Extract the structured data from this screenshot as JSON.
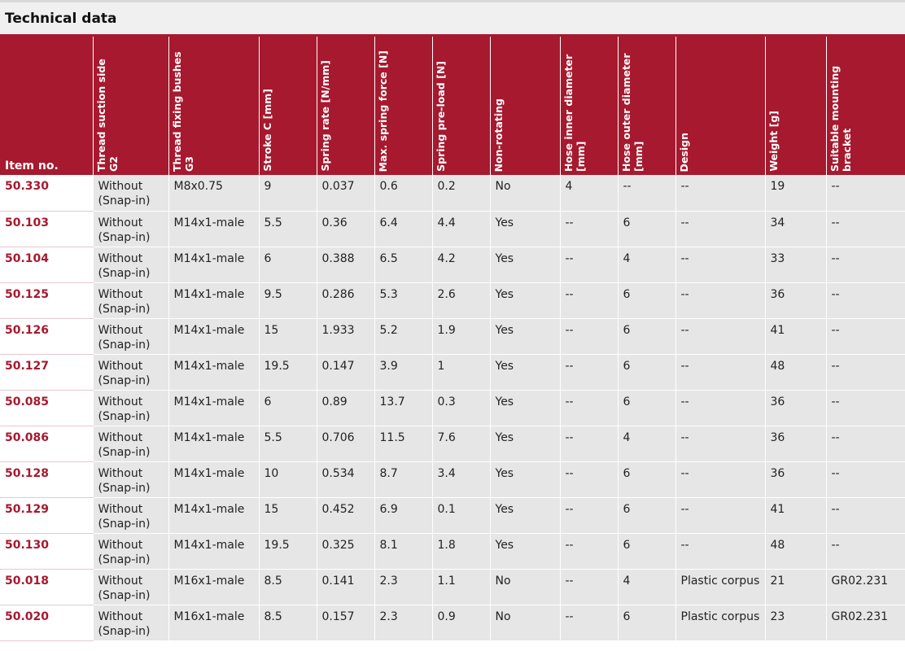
{
  "title": "Technical data",
  "columns": [
    {
      "key": "item",
      "label": "Item no.",
      "unit": ""
    },
    {
      "key": "g2",
      "label": "Thread suction side",
      "unit": "G2"
    },
    {
      "key": "g3",
      "label": "Thread fixing bushes",
      "unit": "G3"
    },
    {
      "key": "stroke",
      "label": "Stroke C",
      "unit": "[mm]"
    },
    {
      "key": "rate",
      "label": "Spring rate",
      "unit": "[N/mm]"
    },
    {
      "key": "maxforce",
      "label": "Max. spring force",
      "unit": "[N]"
    },
    {
      "key": "preload",
      "label": "Spring pre-load",
      "unit": "[N]"
    },
    {
      "key": "nonrot",
      "label": "Non-rotating",
      "unit": ""
    },
    {
      "key": "hosein",
      "label": "Hose inner diameter",
      "unit": "[mm]"
    },
    {
      "key": "hoseout",
      "label": "Hose outer diameter",
      "unit": "[mm]"
    },
    {
      "key": "design",
      "label": "Design",
      "unit": ""
    },
    {
      "key": "weight",
      "label": "Weight",
      "unit": "[g]"
    },
    {
      "key": "bracket",
      "label": "Suitable mounting bracket",
      "unit": ""
    }
  ],
  "rows": [
    [
      "50.330",
      "Without (Snap-in)",
      "M8x0.75",
      "9",
      "0.037",
      "0.6",
      "0.2",
      "No",
      "4",
      "--",
      "--",
      "19",
      "--"
    ],
    [
      "50.103",
      "Without (Snap-in)",
      "M14x1-male",
      "5.5",
      "0.36",
      "6.4",
      "4.4",
      "Yes",
      "--",
      "6",
      "--",
      "34",
      "--"
    ],
    [
      "50.104",
      "Without (Snap-in)",
      "M14x1-male",
      "6",
      "0.388",
      "6.5",
      "4.2",
      "Yes",
      "--",
      "4",
      "--",
      "33",
      "--"
    ],
    [
      "50.125",
      "Without (Snap-in)",
      "M14x1-male",
      "9.5",
      "0.286",
      "5.3",
      "2.6",
      "Yes",
      "--",
      "6",
      "--",
      "36",
      "--"
    ],
    [
      "50.126",
      "Without (Snap-in)",
      "M14x1-male",
      "15",
      "1.933",
      "5.2",
      "1.9",
      "Yes",
      "--",
      "6",
      "--",
      "41",
      "--"
    ],
    [
      "50.127",
      "Without (Snap-in)",
      "M14x1-male",
      "19.5",
      "0.147",
      "3.9",
      "1",
      "Yes",
      "--",
      "6",
      "--",
      "48",
      "--"
    ],
    [
      "50.085",
      "Without (Snap-in)",
      "M14x1-male",
      "6",
      "0.89",
      "13.7",
      "0.3",
      "Yes",
      "--",
      "6",
      "--",
      "36",
      "--"
    ],
    [
      "50.086",
      "Without (Snap-in)",
      "M14x1-male",
      "5.5",
      "0.706",
      "11.5",
      "7.6",
      "Yes",
      "--",
      "4",
      "--",
      "36",
      "--"
    ],
    [
      "50.128",
      "Without (Snap-in)",
      "M14x1-male",
      "10",
      "0.534",
      "8.7",
      "3.4",
      "Yes",
      "--",
      "6",
      "--",
      "36",
      "--"
    ],
    [
      "50.129",
      "Without (Snap-in)",
      "M14x1-male",
      "15",
      "0.452",
      "6.9",
      "0.1",
      "Yes",
      "--",
      "6",
      "--",
      "41",
      "--"
    ],
    [
      "50.130",
      "Without (Snap-in)",
      "M14x1-male",
      "19.5",
      "0.325",
      "8.1",
      "1.8",
      "Yes",
      "--",
      "6",
      "--",
      "48",
      "--"
    ],
    [
      "50.018",
      "Without (Snap-in)",
      "M16x1-male",
      "8.5",
      "0.141",
      "2.3",
      "1.1",
      "No",
      "--",
      "4",
      "Plastic corpus",
      "21",
      "GR02.231"
    ],
    [
      "50.020",
      "Without (Snap-in)",
      "M16x1-male",
      "8.5",
      "0.157",
      "2.3",
      "0.9",
      "No",
      "--",
      "6",
      "Plastic corpus",
      "23",
      "GR02.231"
    ]
  ],
  "colors": {
    "accent": "#a6192e",
    "cell_bg": "#e6e6e6"
  }
}
